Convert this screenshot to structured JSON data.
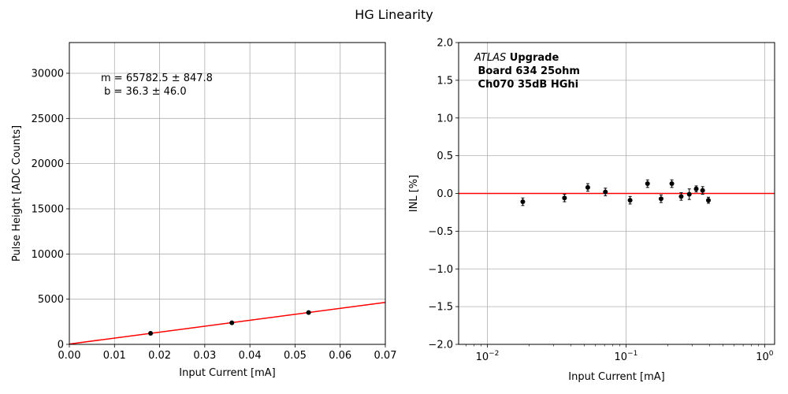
{
  "figure": {
    "title": "HG Linearity"
  },
  "chart_data": [
    {
      "type": "scatter",
      "xlabel": "Input Current [mA]",
      "ylabel": "Pulse Height [ADC Counts]",
      "xlim": [
        0,
        0.07
      ],
      "ylim": [
        0,
        33400
      ],
      "xticks": [
        0,
        0.01,
        0.02,
        0.03,
        0.04,
        0.05,
        0.06,
        0.07
      ],
      "xtick_labels": [
        "0.00",
        "0.01",
        "0.02",
        "0.03",
        "0.04",
        "0.05",
        "0.06",
        "0.07"
      ],
      "yticks": [
        0,
        5000,
        10000,
        15000,
        20000,
        25000,
        30000
      ],
      "ytick_labels": [
        "0",
        "5000",
        "10000",
        "15000",
        "20000",
        "25000",
        "30000"
      ],
      "grid": true,
      "points": {
        "x": [
          0.018,
          0.036,
          0.053
        ],
        "y": [
          1220,
          2390,
          3520
        ]
      },
      "fit": {
        "slope": 65782.5,
        "intercept": 36.3,
        "color": "#ff0000"
      },
      "annotation_lines": [
        "m = 65782.5 ± 847.8",
        " b = 36.3 ± 46.0"
      ],
      "point_color": "#000000"
    },
    {
      "type": "scatter",
      "xscale": "log",
      "xlabel": "Input Current [mA]",
      "ylabel": "INL [%]",
      "xlim": [
        0.0062,
        1.18
      ],
      "ylim": [
        -2.0,
        2.0
      ],
      "yticks": [
        -2.0,
        -1.5,
        -1.0,
        -0.5,
        0.0,
        0.5,
        1.0,
        1.5,
        2.0
      ],
      "ytick_labels": [
        "−2.0",
        "−1.5",
        "−1.0",
        "−0.5",
        "0.0",
        "0.5",
        "1.0",
        "1.5",
        "2.0"
      ],
      "xticks_major": [
        0.01,
        0.1,
        1
      ],
      "xtick_labels": [
        {
          "base": "10",
          "exp": "−2"
        },
        {
          "base": "10",
          "exp": "−1"
        },
        {
          "base": "10",
          "exp": "0"
        }
      ],
      "grid": true,
      "reference_line": {
        "y": 0,
        "color": "#ff0000"
      },
      "points": {
        "x": [
          0.018,
          0.036,
          0.053,
          0.071,
          0.107,
          0.143,
          0.179,
          0.214,
          0.25,
          0.286,
          0.321,
          0.357,
          0.393
        ],
        "y": [
          -0.11,
          -0.06,
          0.08,
          0.02,
          -0.09,
          0.13,
          -0.07,
          0.13,
          -0.04,
          -0.01,
          0.06,
          0.04,
          -0.09
        ],
        "err": [
          0.05,
          0.05,
          0.05,
          0.05,
          0.05,
          0.05,
          0.05,
          0.05,
          0.05,
          0.07,
          0.04,
          0.05,
          0.04
        ]
      },
      "legend_text": {
        "line1_italic": "ATLAS",
        "line1_bold": " Upgrade",
        "line2": " Board 634 25ohm",
        "line3": " Ch070 35dB HGhi"
      },
      "point_color": "#000000"
    }
  ]
}
